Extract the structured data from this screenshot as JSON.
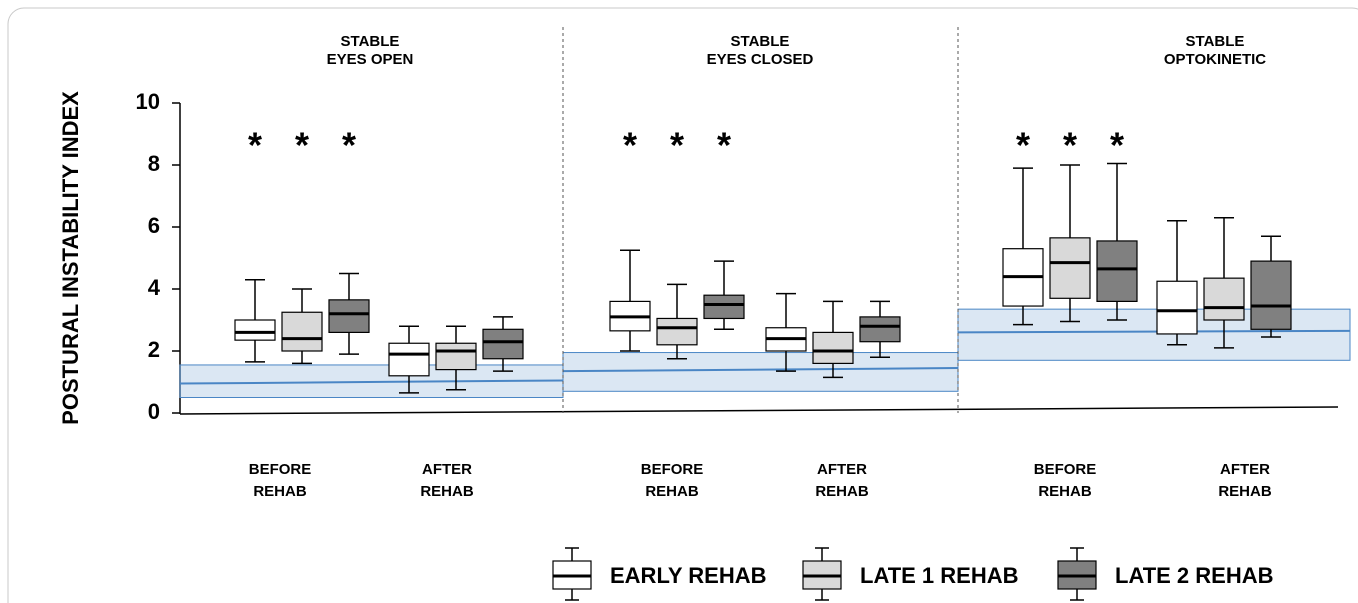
{
  "chart_data": {
    "type": "box",
    "ylabel": "POSTURAL INSTABILITY INDEX",
    "ylim": [
      0,
      10
    ],
    "yticks": [
      0,
      2,
      4,
      6,
      8,
      10
    ],
    "panels": [
      {
        "title": [
          "STABLE",
          "EYES OPEN"
        ],
        "categories": [
          [
            "BEFORE",
            "REHAB"
          ],
          [
            "AFTER",
            "REHAB"
          ]
        ],
        "annotations": [
          "*",
          "*",
          "*"
        ],
        "band": {
          "low": 0.5,
          "high": 1.55,
          "line": [
            0.95,
            1.05
          ]
        }
      },
      {
        "title": [
          "STABLE",
          "EYES CLOSED"
        ],
        "categories": [
          [
            "BEFORE",
            "REHAB"
          ],
          [
            "AFTER",
            "REHAB"
          ]
        ],
        "annotations": [
          "*",
          "*",
          "*"
        ],
        "band": {
          "low": 0.7,
          "high": 1.95,
          "line": [
            1.35,
            1.45
          ]
        }
      },
      {
        "title": [
          "STABLE",
          "OPTOKINETIC"
        ],
        "categories": [
          [
            "BEFORE",
            "REHAB"
          ],
          [
            "AFTER",
            "REHAB"
          ]
        ],
        "annotations": [
          "*",
          "*",
          "*"
        ],
        "band": {
          "low": 1.7,
          "high": 3.35,
          "line": [
            2.6,
            2.65
          ]
        }
      }
    ],
    "band_color": "#4a86c5",
    "series": [
      {
        "name": "EARLY REHAB",
        "color": "#ffffff",
        "boxes": [
          [
            {
              "whislo": 1.65,
              "q1": 2.35,
              "med": 2.6,
              "q3": 3.0,
              "whishi": 4.3
            },
            {
              "whislo": 0.65,
              "q1": 1.2,
              "med": 1.9,
              "q3": 2.25,
              "whishi": 2.8
            }
          ],
          [
            {
              "whislo": 2.0,
              "q1": 2.65,
              "med": 3.1,
              "q3": 3.6,
              "whishi": 5.25
            },
            {
              "whislo": 1.35,
              "q1": 2.0,
              "med": 2.4,
              "q3": 2.75,
              "whishi": 3.85
            }
          ],
          [
            {
              "whislo": 2.85,
              "q1": 3.45,
              "med": 4.4,
              "q3": 5.3,
              "whishi": 7.9
            },
            {
              "whislo": 2.2,
              "q1": 2.55,
              "med": 3.3,
              "q3": 4.25,
              "whishi": 6.2
            }
          ]
        ]
      },
      {
        "name": "LATE 1 REHAB",
        "color": "#d9d9d9",
        "boxes": [
          [
            {
              "whislo": 1.6,
              "q1": 2.0,
              "med": 2.4,
              "q3": 3.25,
              "whishi": 4.0
            },
            {
              "whislo": 0.75,
              "q1": 1.4,
              "med": 2.0,
              "q3": 2.25,
              "whishi": 2.8
            }
          ],
          [
            {
              "whislo": 1.75,
              "q1": 2.2,
              "med": 2.75,
              "q3": 3.05,
              "whishi": 4.15
            },
            {
              "whislo": 1.15,
              "q1": 1.6,
              "med": 2.0,
              "q3": 2.6,
              "whishi": 3.6
            }
          ],
          [
            {
              "whislo": 2.95,
              "q1": 3.7,
              "med": 4.85,
              "q3": 5.65,
              "whishi": 8.0
            },
            {
              "whislo": 2.1,
              "q1": 3.0,
              "med": 3.4,
              "q3": 4.35,
              "whishi": 6.3
            }
          ]
        ]
      },
      {
        "name": "LATE 2 REHAB",
        "color": "#808080",
        "boxes": [
          [
            {
              "whislo": 1.9,
              "q1": 2.6,
              "med": 3.2,
              "q3": 3.65,
              "whishi": 4.5
            },
            {
              "whislo": 1.35,
              "q1": 1.75,
              "med": 2.3,
              "q3": 2.7,
              "whishi": 3.1
            }
          ],
          [
            {
              "whislo": 2.7,
              "q1": 3.05,
              "med": 3.5,
              "q3": 3.8,
              "whishi": 4.9
            },
            {
              "whislo": 1.8,
              "q1": 2.3,
              "med": 2.8,
              "q3": 3.1,
              "whishi": 3.6
            }
          ],
          [
            {
              "whislo": 3.0,
              "q1": 3.6,
              "med": 4.65,
              "q3": 5.55,
              "whishi": 8.05
            },
            {
              "whislo": 2.45,
              "q1": 2.7,
              "med": 3.45,
              "q3": 4.9,
              "whishi": 5.7
            }
          ]
        ]
      }
    ]
  }
}
